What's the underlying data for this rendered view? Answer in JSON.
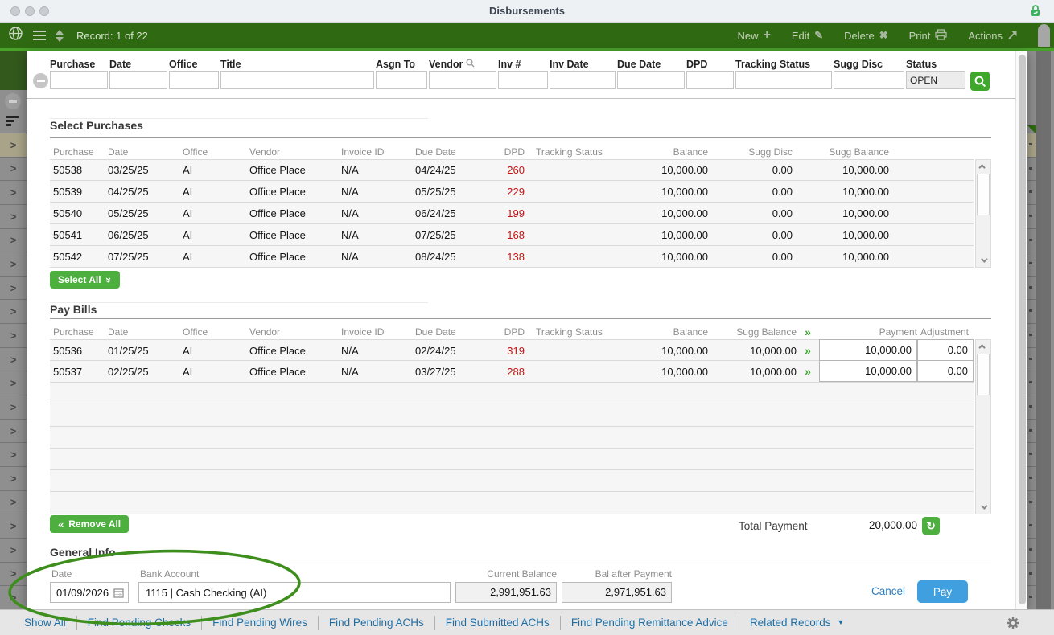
{
  "window": {
    "title": "Disbursements"
  },
  "toolbar": {
    "record_label": "Record: 1 of 22",
    "new_label": "New",
    "edit_label": "Edit",
    "delete_label": "Delete",
    "print_label": "Print",
    "actions_label": "Actions"
  },
  "filter": {
    "fields": [
      {
        "label": "Purchase",
        "value": ""
      },
      {
        "label": "Date",
        "value": ""
      },
      {
        "label": "Office",
        "value": ""
      },
      {
        "label": "Title",
        "value": ""
      },
      {
        "label": "Asgn To",
        "value": ""
      },
      {
        "label": "Vendor",
        "value": ""
      },
      {
        "label": "Inv #",
        "value": ""
      },
      {
        "label": "Inv Date",
        "value": ""
      },
      {
        "label": "Due Date",
        "value": ""
      },
      {
        "label": "DPD",
        "value": ""
      },
      {
        "label": "Tracking Status",
        "value": ""
      },
      {
        "label": "Sugg Disc",
        "value": ""
      },
      {
        "label": "Status",
        "value": "OPEN"
      }
    ]
  },
  "select_purchases": {
    "title": "Select Purchases",
    "columns": [
      "Purchase",
      "Date",
      "Office",
      "Vendor",
      "Invoice ID",
      "Due Date",
      "DPD",
      "Tracking Status",
      "Balance",
      "Sugg Disc",
      "Sugg Balance"
    ],
    "rows": [
      [
        "50538",
        "03/25/25",
        "AI",
        "Office Place",
        "N/A",
        "04/24/25",
        "260",
        "",
        "10,000.00",
        "0.00",
        "10,000.00"
      ],
      [
        "50539",
        "04/25/25",
        "AI",
        "Office Place",
        "N/A",
        "05/25/25",
        "229",
        "",
        "10,000.00",
        "0.00",
        "10,000.00"
      ],
      [
        "50540",
        "05/25/25",
        "AI",
        "Office Place",
        "N/A",
        "06/24/25",
        "199",
        "",
        "10,000.00",
        "0.00",
        "10,000.00"
      ],
      [
        "50541",
        "06/25/25",
        "AI",
        "Office Place",
        "N/A",
        "07/25/25",
        "168",
        "",
        "10,000.00",
        "0.00",
        "10,000.00"
      ],
      [
        "50542",
        "07/25/25",
        "AI",
        "Office Place",
        "N/A",
        "08/24/25",
        "138",
        "",
        "10,000.00",
        "0.00",
        "10,000.00"
      ]
    ],
    "select_all_label": "Select All"
  },
  "pay_bills": {
    "title": "Pay Bills",
    "columns": [
      "Purchase",
      "Date",
      "Office",
      "Vendor",
      "Invoice ID",
      "Due Date",
      "DPD",
      "Tracking Status",
      "Balance",
      "Sugg Balance",
      "Payment",
      "Adjustment"
    ],
    "rows": [
      [
        "50536",
        "01/25/25",
        "AI",
        "Office Place",
        "N/A",
        "02/24/25",
        "319",
        "",
        "10,000.00",
        "10,000.00",
        "10,000.00",
        "0.00"
      ],
      [
        "50537",
        "02/25/25",
        "AI",
        "Office Place",
        "N/A",
        "03/27/25",
        "288",
        "",
        "10,000.00",
        "10,000.00",
        "10,000.00",
        "0.00"
      ]
    ],
    "empty_row_count": 6,
    "remove_all_label": "Remove All",
    "total_payment_label": "Total Payment",
    "total_payment_value": "20,000.00"
  },
  "general_info": {
    "title": "General Info",
    "date_label": "Date",
    "date_value": "01/09/2026",
    "bank_account_label": "Bank Account",
    "bank_account_value": "1115 | Cash Checking (AI)",
    "current_balance_label": "Current Balance",
    "current_balance_value": "2,991,951.63",
    "bal_after_payment_label": "Bal after Payment",
    "bal_after_payment_value": "2,971,951.63",
    "cancel_label": "Cancel",
    "pay_label": "Pay"
  },
  "footer": {
    "links": [
      "Show All",
      "Find Pending Checks",
      "Find Pending Wires",
      "Find Pending ACHs",
      "Find Submitted ACHs",
      "Find Pending Remittance Advice",
      "Related Records"
    ]
  },
  "background": {
    "row_count": 20
  },
  "icons": {
    "plus": "+",
    "pencil": "✎",
    "x_mark": "✖",
    "double_chevron_right": "»",
    "double_chevron_left": "«",
    "refresh": "↻",
    "caret_down": "▼",
    "row_chevron": ">"
  },
  "colors": {
    "toolbar_green": "#2f6a12",
    "accent_green": "#4caf3e",
    "bright_green_edge": "#49a32a",
    "dpd_red": "#c41212",
    "pay_blue": "#3f9fdf",
    "link_blue": "#1f6fa5",
    "annotation_green": "#3e8e1d"
  }
}
